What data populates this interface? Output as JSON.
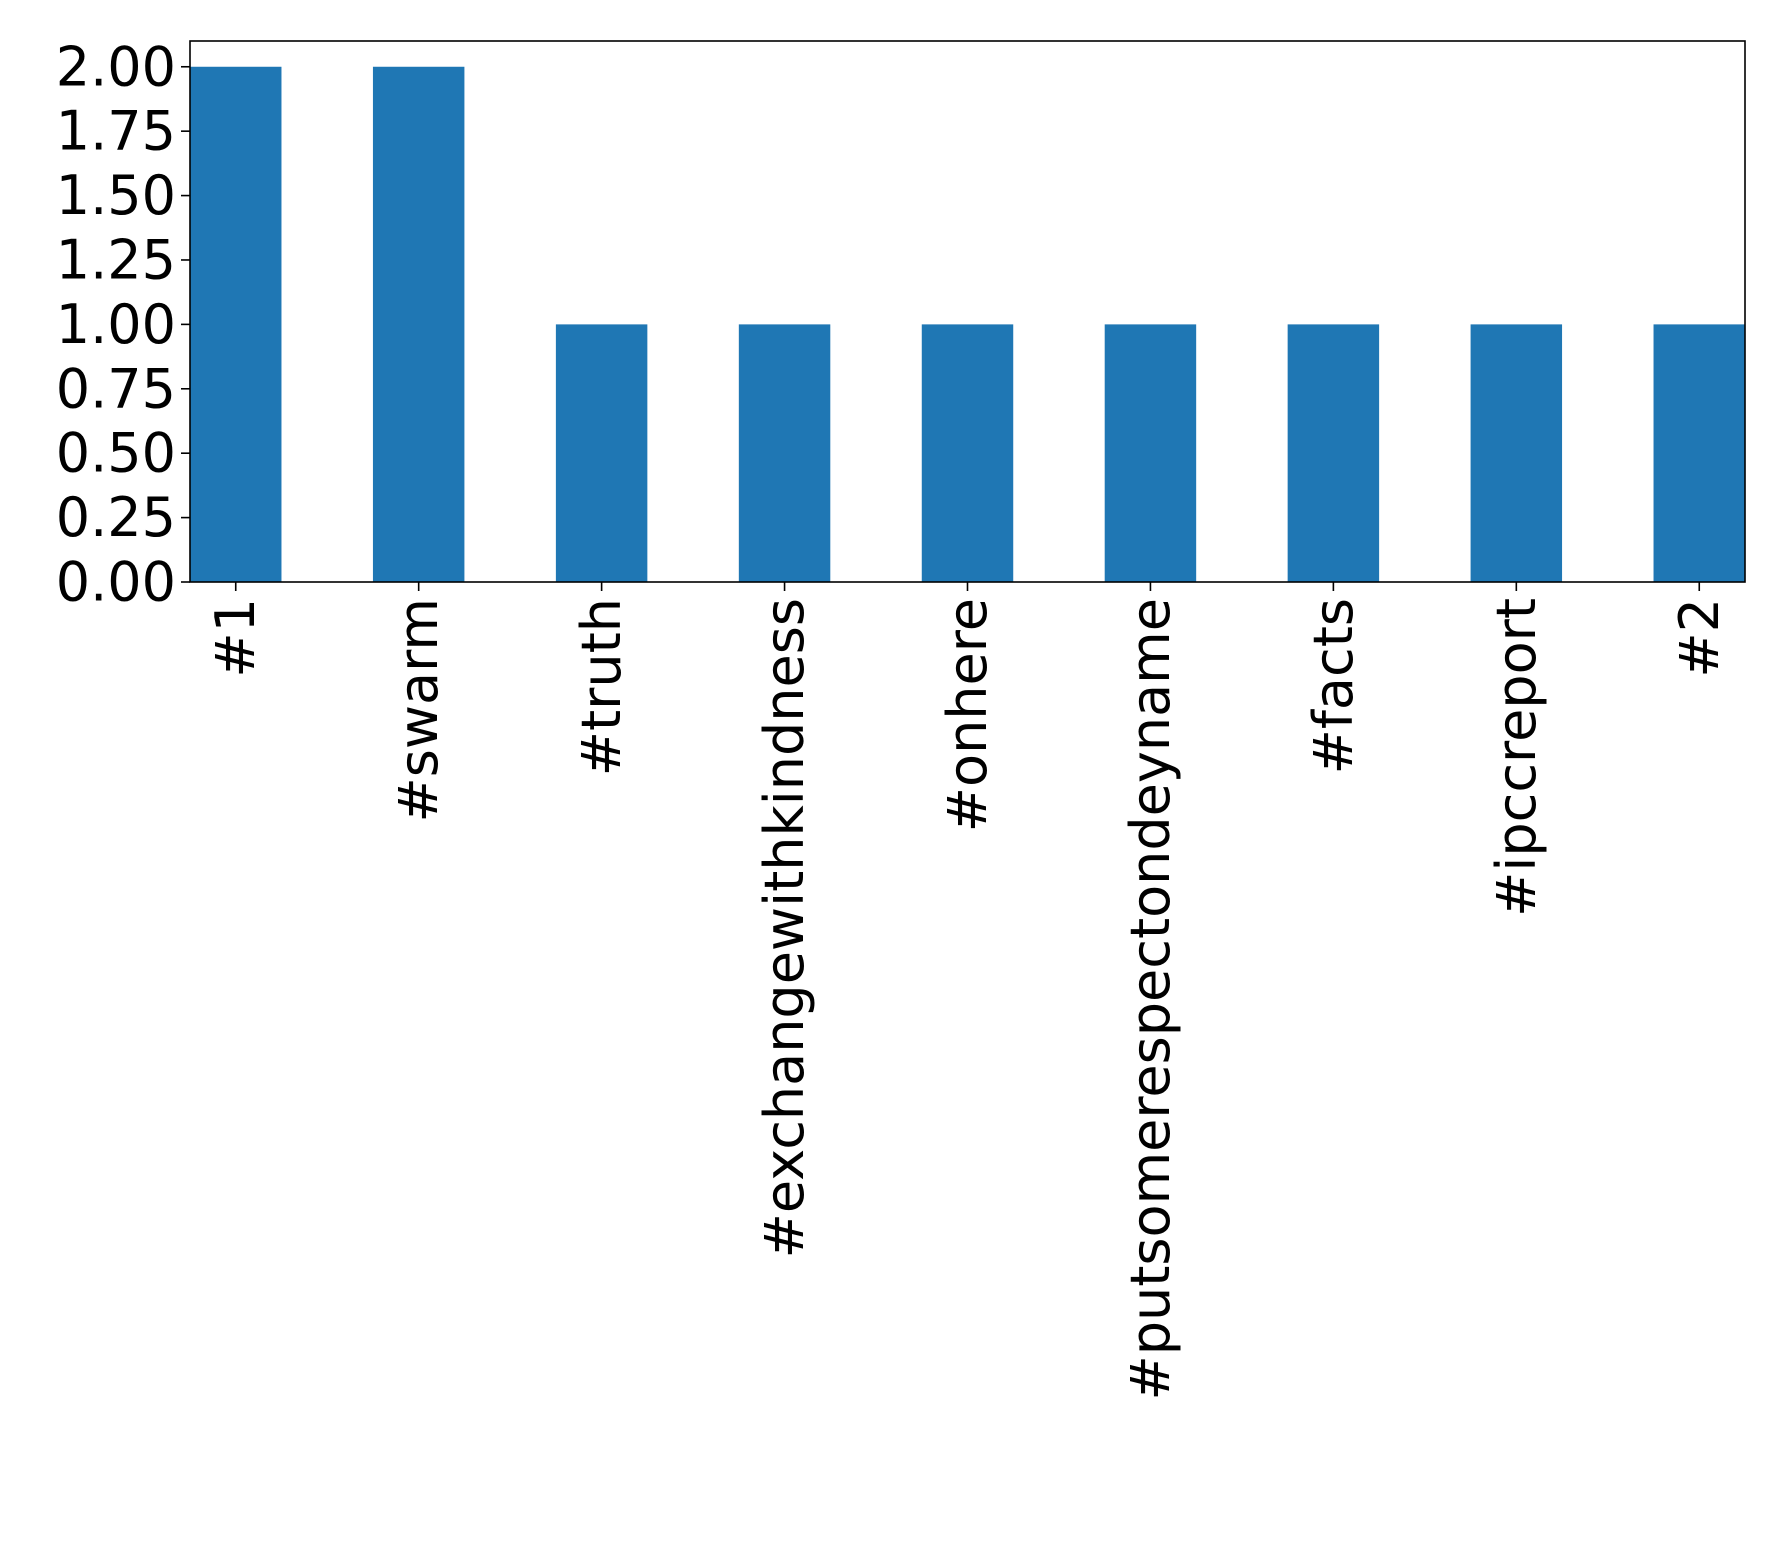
{
  "chart_data": {
    "type": "bar",
    "title": "",
    "xlabel": "",
    "ylabel": "",
    "categories": [
      "#1",
      "#swarm",
      "#truth",
      "#exchangewithkindness",
      "#onhere",
      "#putsomerespectondeyname",
      "#facts",
      "#ipccreport",
      "#2"
    ],
    "values": [
      2,
      2,
      1,
      1,
      1,
      1,
      1,
      1,
      1
    ],
    "ylim": [
      0,
      2.1
    ],
    "yticks": [
      "0.00",
      "0.25",
      "0.50",
      "0.75",
      "1.00",
      "1.25",
      "1.50",
      "1.75",
      "2.00"
    ],
    "grid": false,
    "legend": "none",
    "bar_color": "#1f77b4"
  }
}
